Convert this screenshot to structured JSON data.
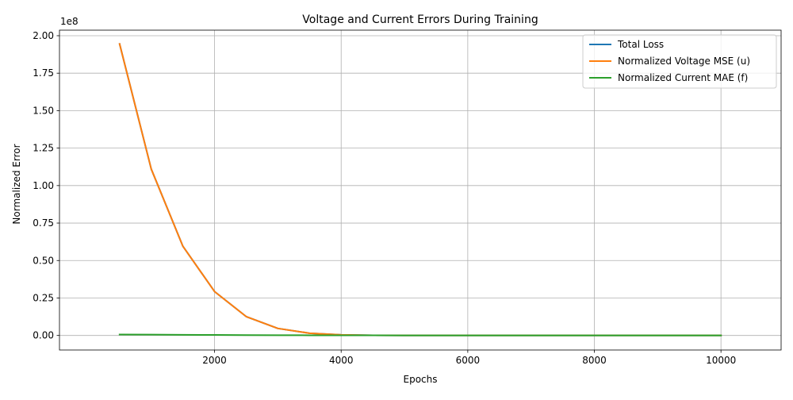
{
  "chart_data": {
    "type": "line",
    "title": "Voltage and Current Errors During Training",
    "xlabel": "Epochs",
    "ylabel": "Normalized Error",
    "y_offset_text": "1e8",
    "y_scale_factor": 100000000,
    "xlim": [
      -450,
      10950
    ],
    "ylim": [
      -9700000,
      203700000
    ],
    "x_ticks": [
      2000,
      4000,
      6000,
      8000,
      10000
    ],
    "x_tick_labels": [
      "2000",
      "4000",
      "6000",
      "8000",
      "10000"
    ],
    "y_ticks": [
      0,
      25000000,
      50000000,
      75000000,
      100000000,
      125000000,
      150000000,
      175000000,
      200000000
    ],
    "y_tick_labels": [
      "0.00",
      "0.25",
      "0.50",
      "0.75",
      "1.00",
      "1.25",
      "1.50",
      "1.75",
      "2.00"
    ],
    "grid": true,
    "legend_position": "top-right",
    "x": [
      500,
      1000,
      1500,
      2000,
      2500,
      3000,
      3500,
      4000,
      4500,
      5000,
      5500,
      6000,
      6500,
      7000,
      7500,
      8000,
      8500,
      9000,
      9500,
      10000
    ],
    "series": [
      {
        "name": "Total Loss",
        "color": "#1f77b4",
        "values": [
          194500000,
          111000000,
          59500000,
          29300000,
          12600000,
          4700000,
          1500000,
          400000,
          100000,
          30000,
          10000,
          5000,
          2000,
          1000,
          800,
          600,
          500,
          400,
          300,
          200
        ]
      },
      {
        "name": "Normalized Voltage MSE (u)",
        "color": "#ff7f0e",
        "values": [
          194500000,
          111000000,
          59500000,
          29300000,
          12600000,
          4700000,
          1500000,
          400000,
          100000,
          30000,
          10000,
          5000,
          2000,
          1000,
          800,
          600,
          500,
          400,
          300,
          200
        ]
      },
      {
        "name": "Normalized Current MAE (f)",
        "color": "#2ca02c",
        "values": [
          600000,
          550000,
          450000,
          350000,
          250000,
          180000,
          130000,
          100000,
          80000,
          60000,
          50000,
          40000,
          30000,
          25000,
          20000,
          15000,
          12000,
          10000,
          8000,
          6000
        ]
      }
    ]
  }
}
